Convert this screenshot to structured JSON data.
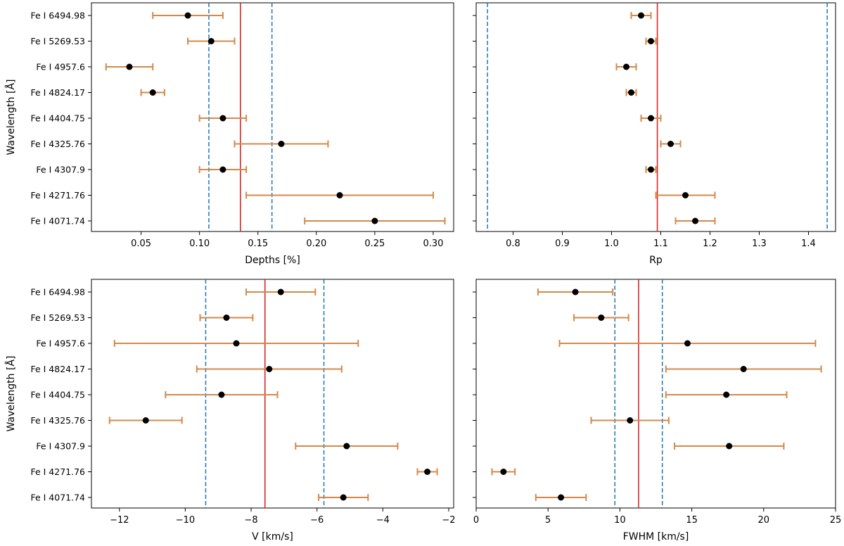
{
  "figure": {
    "categories": [
      "Fe I 4071.74",
      "Fe I 4271.76",
      "Fe I 4307.9",
      "Fe I 4325.76",
      "Fe I 4404.75",
      "Fe I 4824.17",
      "Fe I 4957.6",
      "Fe I 5269.53",
      "Fe I 6494.98"
    ],
    "ylabel": "Wavelength [Å]",
    "colors": {
      "errorbar": "#d4894a",
      "marker": "#000000",
      "mean_line": "#d62728",
      "std_line": "#1f77b4"
    }
  },
  "chart_data": [
    {
      "id": "depths",
      "type": "errorbar",
      "xlabel": "Depths [%]",
      "xlim": [
        0.0075,
        0.3175
      ],
      "xticks": [
        0.05,
        0.1,
        0.15,
        0.2,
        0.25,
        0.3
      ],
      "xtick_labels": [
        "0.05",
        "0.10",
        "0.15",
        "0.20",
        "0.25",
        "0.30"
      ],
      "show_ylabel": true,
      "values": [
        0.25,
        0.22,
        0.12,
        0.17,
        0.12,
        0.06,
        0.04,
        0.11,
        0.09
      ],
      "errors": [
        0.06,
        0.08,
        0.02,
        0.04,
        0.02,
        0.01,
        0.02,
        0.02,
        0.03
      ],
      "mean": 0.135,
      "std_lines": [
        0.108,
        0.162
      ]
    },
    {
      "id": "rp",
      "type": "errorbar",
      "xlabel": "Rp",
      "xlim": [
        0.725,
        1.455
      ],
      "xticks": [
        0.8,
        0.9,
        1.0,
        1.1,
        1.2,
        1.3,
        1.4
      ],
      "xtick_labels": [
        "0.8",
        "0.9",
        "1.0",
        "1.1",
        "1.2",
        "1.3",
        "1.4"
      ],
      "show_ylabel": false,
      "values": [
        1.17,
        1.15,
        1.08,
        1.12,
        1.08,
        1.04,
        1.03,
        1.08,
        1.06
      ],
      "errors": [
        0.04,
        0.06,
        0.01,
        0.02,
        0.02,
        0.01,
        0.02,
        0.01,
        0.02
      ],
      "mean": 1.093,
      "std_lines": [
        0.748,
        1.438
      ]
    },
    {
      "id": "velocity",
      "type": "errorbar",
      "xlabel": "V [km/s]",
      "xlim": [
        -12.85,
        -1.85
      ],
      "xticks": [
        -12,
        -10,
        -8,
        -6,
        -4,
        -2
      ],
      "xtick_labels": [
        "−12",
        "−10",
        "−8",
        "−6",
        "−4",
        "−2"
      ],
      "show_ylabel": true,
      "values": [
        -5.2,
        -2.65,
        -5.1,
        -11.2,
        -8.9,
        -7.45,
        -8.45,
        -8.75,
        -7.1
      ],
      "errors": [
        0.75,
        0.3,
        1.55,
        1.1,
        1.7,
        2.2,
        3.7,
        0.8,
        1.05
      ],
      "mean": -7.58,
      "std_lines": [
        -9.38,
        -5.79
      ]
    },
    {
      "id": "fwhm",
      "type": "errorbar",
      "xlabel": "FWHM [km/s]",
      "xlim": [
        0,
        25
      ],
      "xticks": [
        0,
        5,
        10,
        15,
        20,
        25
      ],
      "xtick_labels": [
        "0",
        "5",
        "10",
        "15",
        "20",
        "25"
      ],
      "show_ylabel": false,
      "values": [
        5.9,
        1.9,
        17.6,
        10.7,
        17.4,
        18.6,
        14.7,
        8.7,
        6.9
      ],
      "errors": [
        1.75,
        0.8,
        3.8,
        2.7,
        4.2,
        5.4,
        8.9,
        1.9,
        2.6
      ],
      "mean": 11.3,
      "std_lines": [
        9.65,
        12.95
      ]
    }
  ]
}
